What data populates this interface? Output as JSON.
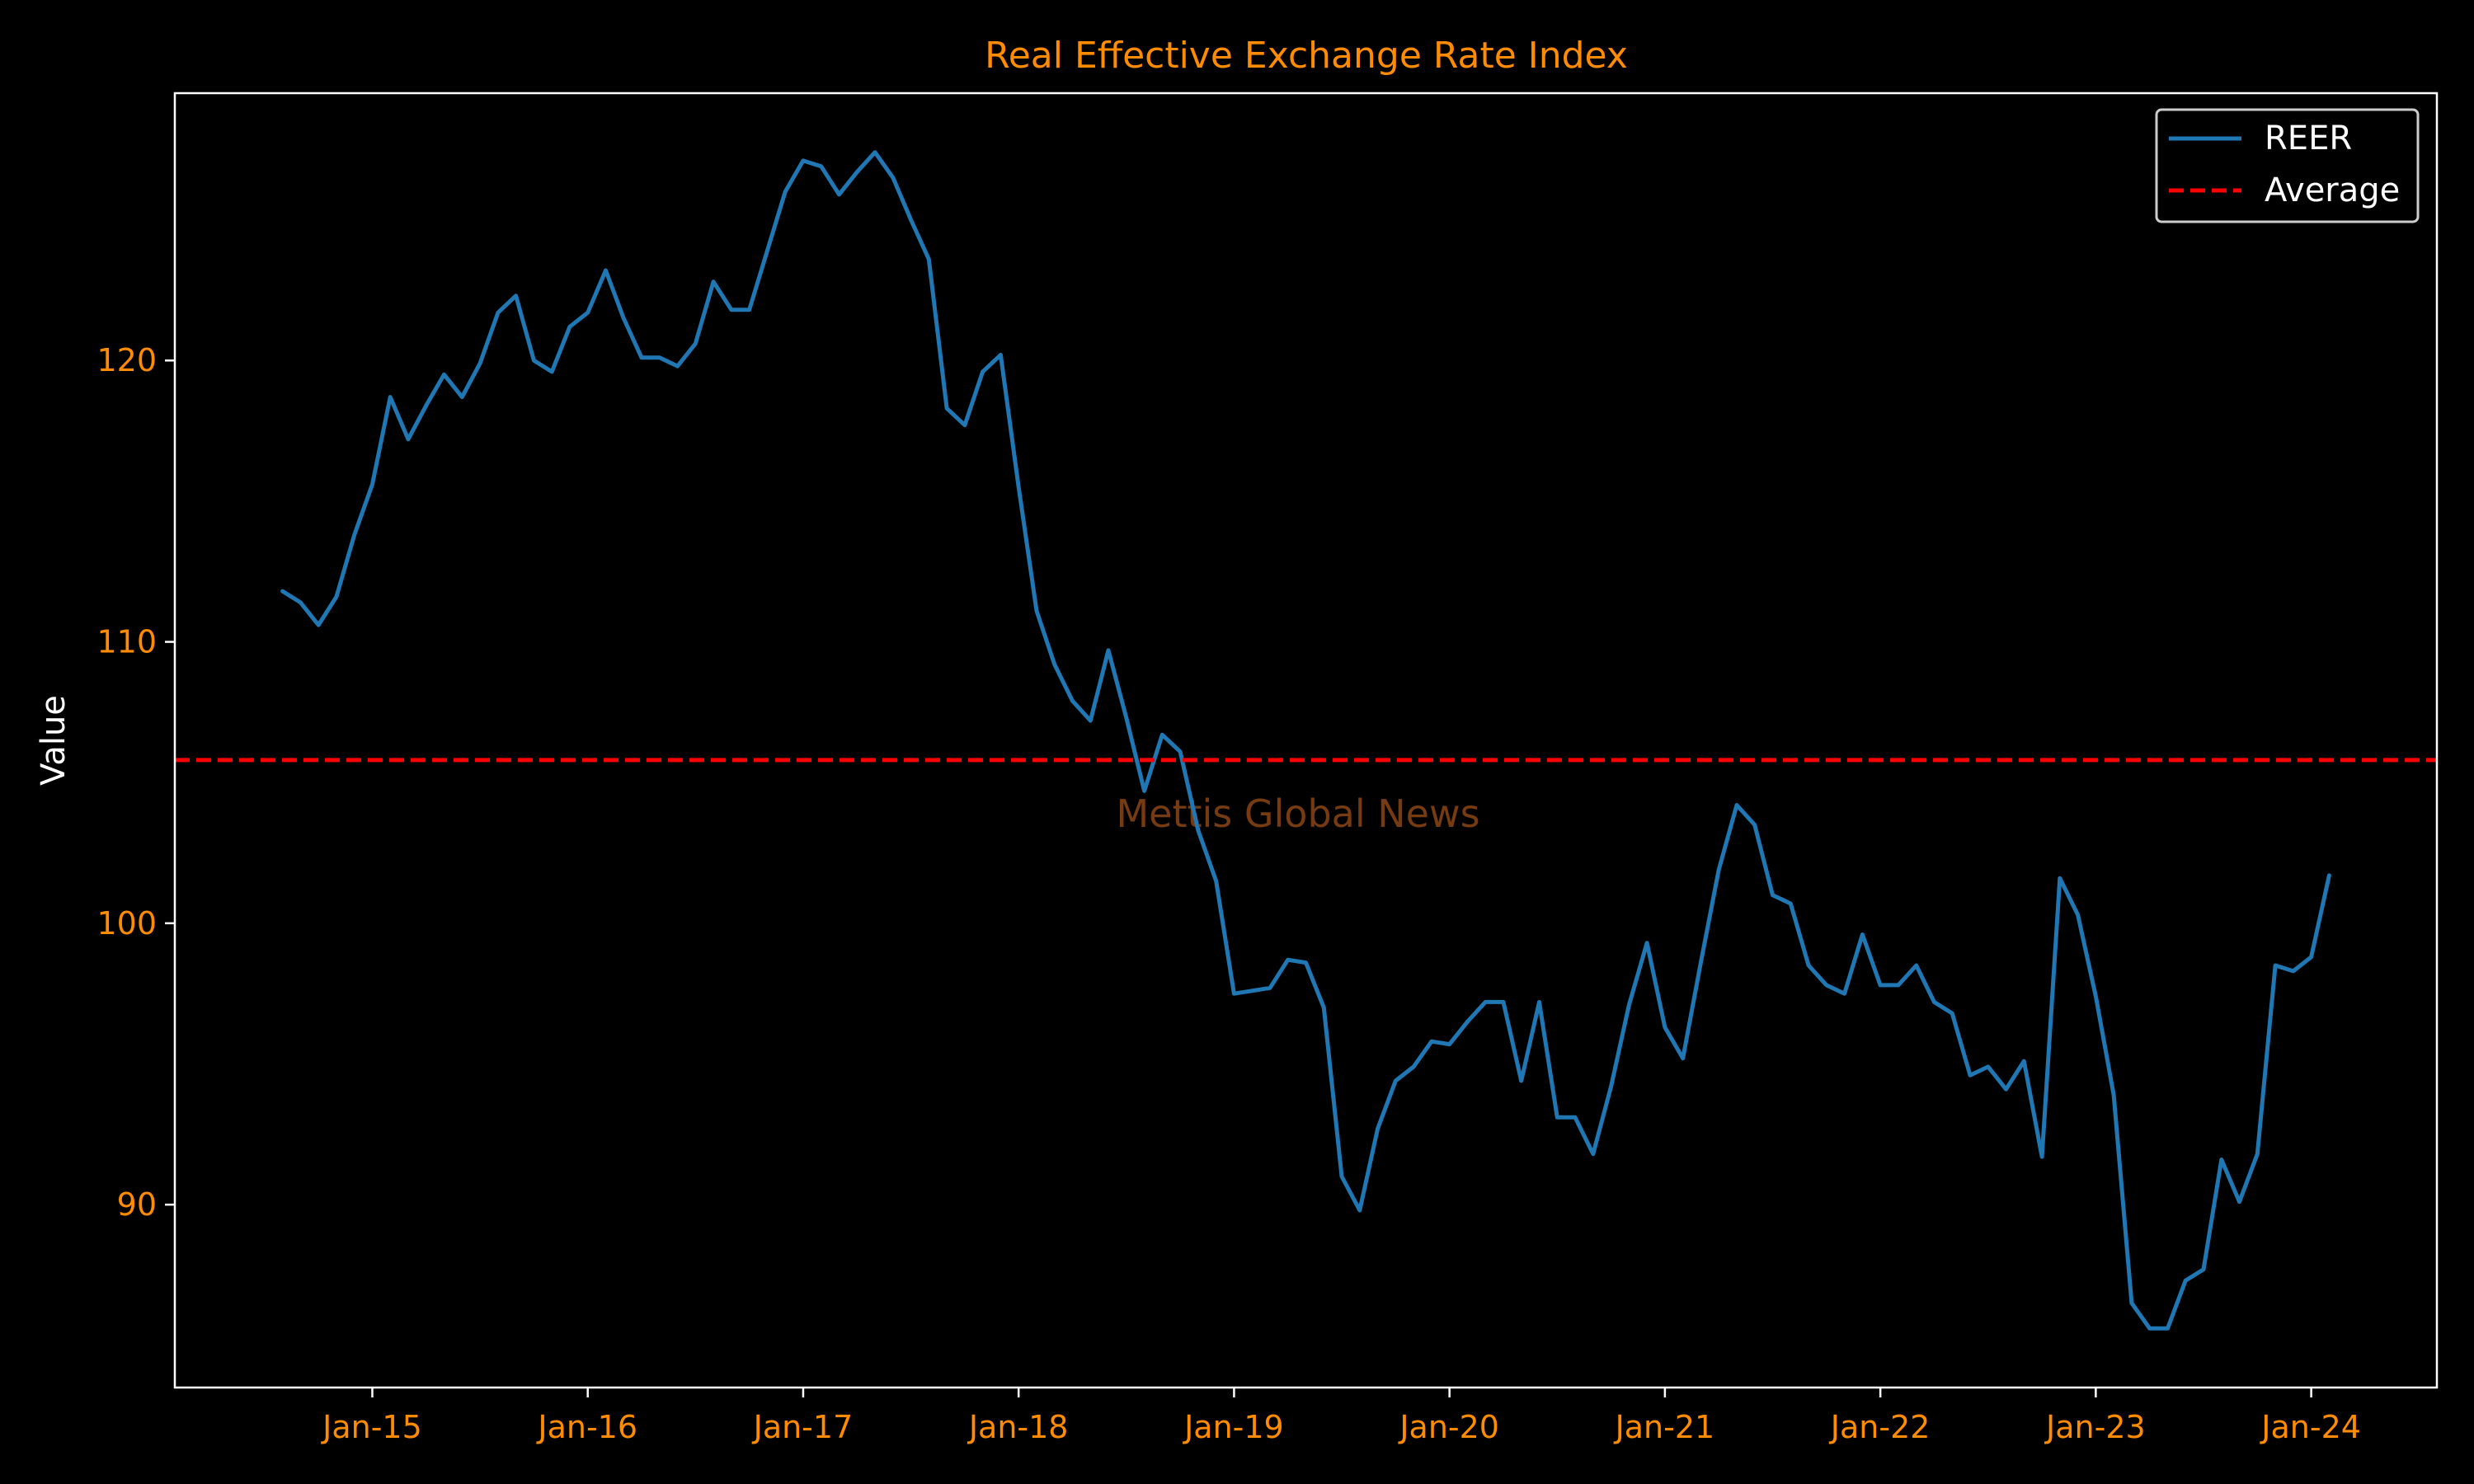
{
  "chart_data": {
    "type": "line",
    "title": "Real Effective Exchange Rate Index",
    "xlabel": "",
    "ylabel": "Value",
    "watermark": "Mettis Global News",
    "x_tick_labels": [
      "Jan-15",
      "Jan-16",
      "Jan-17",
      "Jan-18",
      "Jan-19",
      "Jan-20",
      "Jan-21",
      "Jan-22",
      "Jan-23",
      "Jan-24"
    ],
    "y_ticks": [
      90,
      100,
      110,
      120
    ],
    "ylim": [
      83.5,
      129.5
    ],
    "xlim": [
      "2014-02",
      "2024-08"
    ],
    "grid": false,
    "legend_position": "top-right",
    "colors": {
      "background": "#000000",
      "axes": "#ffffff",
      "title": "#ff8c00",
      "ticks": "#ff8c00",
      "ylabel": "#ffffff",
      "series": "#1f77b4",
      "average": "#ff0000",
      "watermark": "#8b4513"
    },
    "series": [
      {
        "name": "REER",
        "x": [
          "2014-08",
          "2014-09",
          "2014-10",
          "2014-11",
          "2014-12",
          "2015-01",
          "2015-02",
          "2015-03",
          "2015-04",
          "2015-05",
          "2015-06",
          "2015-07",
          "2015-08",
          "2015-09",
          "2015-10",
          "2015-11",
          "2015-12",
          "2016-01",
          "2016-02",
          "2016-03",
          "2016-04",
          "2016-05",
          "2016-06",
          "2016-07",
          "2016-08",
          "2016-09",
          "2016-10",
          "2016-11",
          "2016-12",
          "2017-01",
          "2017-02",
          "2017-03",
          "2017-04",
          "2017-05",
          "2017-06",
          "2017-07",
          "2017-08",
          "2017-09",
          "2017-10",
          "2017-11",
          "2017-12",
          "2018-01",
          "2018-02",
          "2018-03",
          "2018-04",
          "2018-05",
          "2018-06",
          "2018-07",
          "2018-08",
          "2018-09",
          "2018-10",
          "2018-11",
          "2018-12",
          "2019-01",
          "2019-02",
          "2019-03",
          "2019-04",
          "2019-05",
          "2019-06",
          "2019-07",
          "2019-08",
          "2019-09",
          "2019-10",
          "2019-11",
          "2019-12",
          "2020-01",
          "2020-02",
          "2020-03",
          "2020-04",
          "2020-05",
          "2020-06",
          "2020-07",
          "2020-08",
          "2020-09",
          "2020-10",
          "2020-11",
          "2020-12",
          "2021-01",
          "2021-02",
          "2021-03",
          "2021-04",
          "2021-05",
          "2021-06",
          "2021-07",
          "2021-08",
          "2021-09",
          "2021-10",
          "2021-11",
          "2021-12",
          "2022-01",
          "2022-02",
          "2022-03",
          "2022-04",
          "2022-05",
          "2022-06",
          "2022-07",
          "2022-08",
          "2022-09",
          "2022-10",
          "2022-11",
          "2022-12",
          "2023-01",
          "2023-02",
          "2023-03",
          "2023-04",
          "2023-05",
          "2023-06",
          "2023-07",
          "2023-08",
          "2023-09",
          "2023-10",
          "2023-11",
          "2023-12",
          "2024-01",
          "2024-02"
        ],
        "values": [
          111.8,
          111.4,
          110.6,
          111.6,
          113.8,
          115.6,
          118.7,
          117.2,
          118.4,
          119.5,
          118.7,
          119.9,
          121.7,
          122.3,
          120.0,
          119.6,
          121.2,
          121.7,
          123.2,
          121.5,
          120.1,
          120.1,
          119.8,
          120.6,
          122.8,
          121.8,
          121.8,
          123.9,
          126.0,
          127.1,
          126.9,
          125.9,
          126.7,
          127.4,
          126.5,
          125.0,
          123.6,
          118.3,
          117.7,
          119.6,
          120.2,
          115.5,
          111.1,
          109.2,
          107.9,
          107.2,
          109.7,
          107.3,
          104.7,
          106.7,
          106.1,
          103.3,
          101.5,
          97.5,
          97.6,
          97.7,
          98.7,
          98.6,
          97.0,
          91.0,
          89.8,
          92.7,
          94.4,
          94.9,
          95.8,
          95.7,
          96.5,
          97.2,
          97.2,
          94.4,
          97.2,
          93.1,
          93.1,
          91.8,
          94.2,
          97.1,
          99.3,
          96.3,
          95.2,
          98.6,
          101.9,
          104.2,
          103.5,
          101.0,
          100.7,
          98.5,
          97.8,
          97.5,
          99.6,
          97.8,
          97.8,
          98.5,
          97.2,
          96.8,
          94.6,
          94.9,
          94.1,
          95.1,
          91.7,
          101.6,
          100.3,
          97.4,
          93.9,
          86.5,
          85.6,
          85.6,
          87.3,
          87.7,
          91.6,
          90.1,
          91.8,
          98.5,
          98.3,
          98.8,
          101.7
        ]
      },
      {
        "name": "Average",
        "style": "dashed",
        "value": 105.8
      }
    ]
  }
}
